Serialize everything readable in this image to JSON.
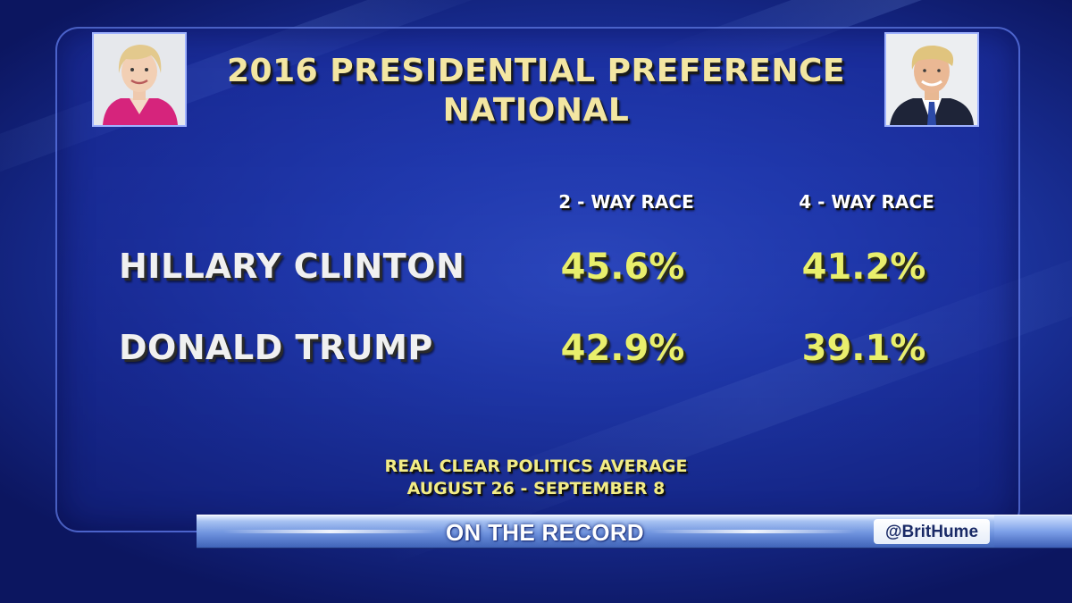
{
  "graphic": {
    "title_line1": "2016 PRESIDENTIAL PREFERENCE",
    "title_line2": "NATIONAL",
    "columns": [
      "2 - WAY RACE",
      "4 - WAY RACE"
    ],
    "rows": [
      {
        "name": "HILLARY CLINTON",
        "two_way": "45.6%",
        "four_way": "41.2%"
      },
      {
        "name": "DONALD TRUMP",
        "two_way": "42.9%",
        "four_way": "39.1%"
      }
    ],
    "source_line1": "REAL CLEAR POLITICS AVERAGE",
    "source_line2": "AUGUST 26 - SEPTEMBER 8"
  },
  "banner": {
    "show": "ON THE RECORD",
    "handle": "@BritHume"
  },
  "colors": {
    "title": "#f3e6a2",
    "value": "#e9ef6c",
    "background": "#2443b8"
  }
}
